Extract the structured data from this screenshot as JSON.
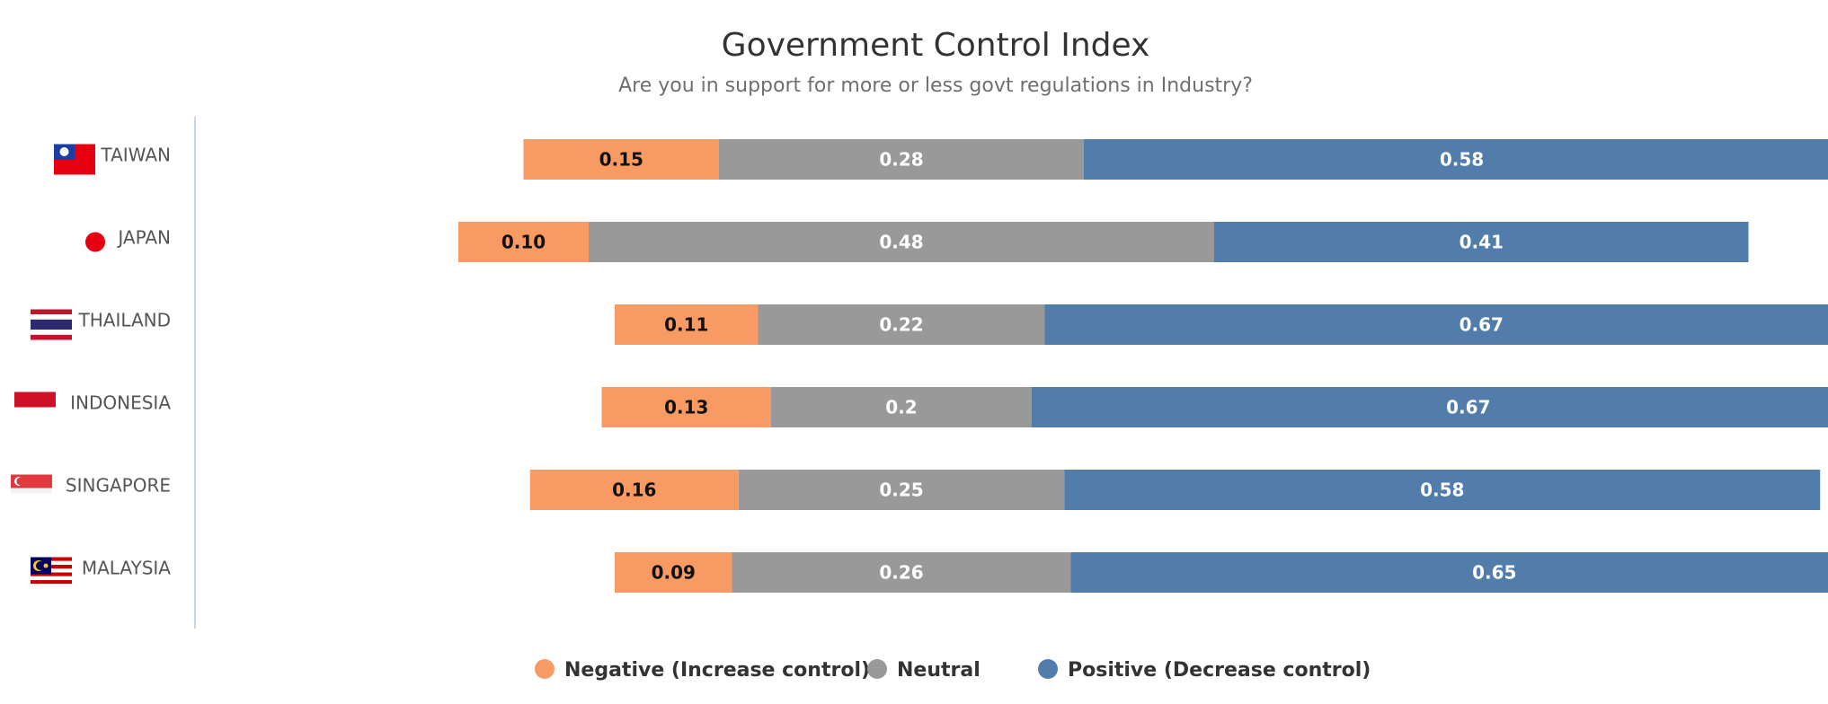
{
  "chart_data": {
    "type": "bar",
    "orientation": "horizontal",
    "stacked": "diverging",
    "title": "Government Control Index",
    "subtitle": "Are you in support for more or less govt regulations in Industry?",
    "categories": [
      "TAIWAN",
      "JAPAN",
      "THAILAND",
      "INDONESIA",
      "SINGAPORE",
      "MALAYSIA"
    ],
    "series": [
      {
        "name": "Negative (Increase control)",
        "color": "#f79a63",
        "label_color": "#111111",
        "values": [
          0.15,
          0.1,
          0.11,
          0.13,
          0.16,
          0.09
        ],
        "labels": [
          "0.15",
          "0.10",
          "0.11",
          "0.13",
          "0.16",
          "0.09"
        ]
      },
      {
        "name": "Neutral",
        "color": "#999999",
        "label_color": "#ffffff",
        "values": [
          0.28,
          0.48,
          0.22,
          0.2,
          0.25,
          0.26
        ],
        "labels": [
          "0.28",
          "0.48",
          "0.22",
          "0.2",
          "0.25",
          "0.26"
        ]
      },
      {
        "name": "Positive (Decrease control)",
        "color": "#527dab",
        "label_color": "#ffffff",
        "values": [
          0.58,
          0.41,
          0.67,
          0.67,
          0.58,
          0.65
        ],
        "labels": [
          "0.58",
          "0.41",
          "0.67",
          "0.67",
          "0.58",
          "0.65"
        ]
      }
    ],
    "flags": [
      "taiwan-flag-icon",
      "japan-flag-icon",
      "thailand-flag-icon",
      "indonesia-flag-icon",
      "singapore-flag-icon",
      "malaysia-flag-icon"
    ],
    "legend_position": "bottom",
    "grid": false,
    "axis_line_color": "#c7d5e5"
  }
}
